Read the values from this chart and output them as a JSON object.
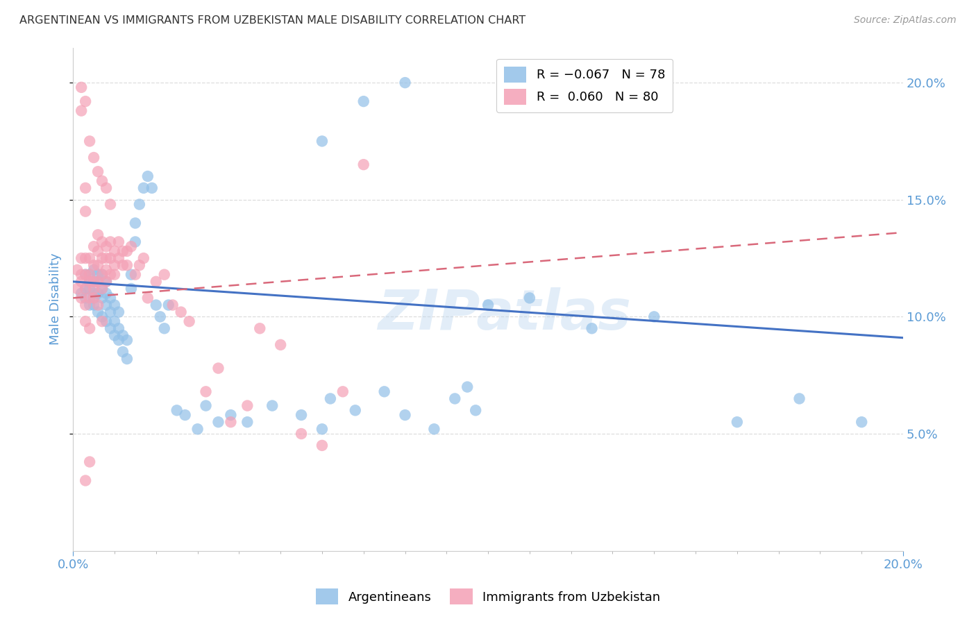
{
  "title": "ARGENTINEAN VS IMMIGRANTS FROM UZBEKISTAN MALE DISABILITY CORRELATION CHART",
  "source": "Source: ZipAtlas.com",
  "ylabel": "Male Disability",
  "xlim": [
    0.0,
    0.2
  ],
  "ylim": [
    0.0,
    0.215
  ],
  "ytick_values": [
    0.05,
    0.1,
    0.15,
    0.2
  ],
  "xtick_major": [
    0.0,
    0.2
  ],
  "blue_color": "#92C0E8",
  "pink_color": "#F4A0B5",
  "blue_line_color": "#4472C4",
  "pink_line_color": "#D9687A",
  "legend_blue_label": "R = −0.067   N = 78",
  "legend_pink_label": "R =  0.060   N = 80",
  "legend_label_argentineans": "Argentineans",
  "legend_label_immigrants": "Immigrants from Uzbekistan",
  "watermark": "ZIPatlas",
  "blue_line_x0": 0.0,
  "blue_line_y0": 0.115,
  "blue_line_x1": 0.2,
  "blue_line_y1": 0.091,
  "pink_line_x0": 0.0,
  "pink_line_y0": 0.108,
  "pink_line_x1": 0.2,
  "pink_line_y1": 0.136,
  "blue_scatter_x": [
    0.002,
    0.003,
    0.003,
    0.003,
    0.004,
    0.004,
    0.004,
    0.004,
    0.005,
    0.005,
    0.005,
    0.005,
    0.005,
    0.006,
    0.006,
    0.006,
    0.006,
    0.007,
    0.007,
    0.007,
    0.007,
    0.008,
    0.008,
    0.008,
    0.008,
    0.009,
    0.009,
    0.009,
    0.01,
    0.01,
    0.01,
    0.011,
    0.011,
    0.011,
    0.012,
    0.012,
    0.013,
    0.013,
    0.014,
    0.014,
    0.015,
    0.015,
    0.016,
    0.017,
    0.018,
    0.019,
    0.02,
    0.021,
    0.022,
    0.023,
    0.025,
    0.027,
    0.03,
    0.032,
    0.035,
    0.038,
    0.042,
    0.048,
    0.055,
    0.06,
    0.062,
    0.068,
    0.075,
    0.08,
    0.087,
    0.092,
    0.097,
    0.1,
    0.11,
    0.125,
    0.14,
    0.16,
    0.175,
    0.19,
    0.06,
    0.07,
    0.08,
    0.095
  ],
  "blue_scatter_y": [
    0.11,
    0.112,
    0.108,
    0.118,
    0.105,
    0.112,
    0.118,
    0.115,
    0.108,
    0.115,
    0.12,
    0.105,
    0.11,
    0.102,
    0.11,
    0.115,
    0.118,
    0.1,
    0.108,
    0.112,
    0.118,
    0.098,
    0.105,
    0.11,
    0.115,
    0.095,
    0.102,
    0.108,
    0.092,
    0.098,
    0.105,
    0.09,
    0.095,
    0.102,
    0.085,
    0.092,
    0.082,
    0.09,
    0.112,
    0.118,
    0.132,
    0.14,
    0.148,
    0.155,
    0.16,
    0.155,
    0.105,
    0.1,
    0.095,
    0.105,
    0.06,
    0.058,
    0.052,
    0.062,
    0.055,
    0.058,
    0.055,
    0.062,
    0.058,
    0.052,
    0.065,
    0.06,
    0.068,
    0.058,
    0.052,
    0.065,
    0.06,
    0.105,
    0.108,
    0.095,
    0.1,
    0.055,
    0.065,
    0.055,
    0.175,
    0.192,
    0.2,
    0.07
  ],
  "pink_scatter_x": [
    0.001,
    0.001,
    0.002,
    0.002,
    0.002,
    0.002,
    0.003,
    0.003,
    0.003,
    0.003,
    0.003,
    0.004,
    0.004,
    0.004,
    0.004,
    0.005,
    0.005,
    0.005,
    0.005,
    0.006,
    0.006,
    0.006,
    0.006,
    0.007,
    0.007,
    0.007,
    0.007,
    0.008,
    0.008,
    0.008,
    0.008,
    0.009,
    0.009,
    0.009,
    0.01,
    0.01,
    0.01,
    0.011,
    0.011,
    0.012,
    0.012,
    0.013,
    0.013,
    0.014,
    0.015,
    0.016,
    0.017,
    0.018,
    0.02,
    0.022,
    0.024,
    0.026,
    0.028,
    0.032,
    0.035,
    0.038,
    0.042,
    0.045,
    0.05,
    0.055,
    0.06,
    0.065,
    0.07,
    0.003,
    0.004,
    0.005,
    0.006,
    0.007,
    0.008,
    0.009,
    0.002,
    0.002,
    0.003,
    0.003,
    0.004,
    0.005,
    0.006,
    0.007,
    0.003,
    0.004
  ],
  "pink_scatter_y": [
    0.12,
    0.112,
    0.125,
    0.115,
    0.108,
    0.118,
    0.118,
    0.112,
    0.105,
    0.125,
    0.098,
    0.125,
    0.118,
    0.108,
    0.095,
    0.13,
    0.122,
    0.115,
    0.112,
    0.135,
    0.128,
    0.122,
    0.115,
    0.132,
    0.125,
    0.118,
    0.112,
    0.13,
    0.125,
    0.12,
    0.115,
    0.132,
    0.125,
    0.118,
    0.128,
    0.122,
    0.118,
    0.132,
    0.125,
    0.128,
    0.122,
    0.128,
    0.122,
    0.13,
    0.118,
    0.122,
    0.125,
    0.108,
    0.115,
    0.118,
    0.105,
    0.102,
    0.098,
    0.068,
    0.078,
    0.055,
    0.062,
    0.095,
    0.088,
    0.05,
    0.045,
    0.068,
    0.165,
    0.145,
    0.175,
    0.168,
    0.162,
    0.158,
    0.155,
    0.148,
    0.198,
    0.188,
    0.192,
    0.155,
    0.115,
    0.108,
    0.105,
    0.098,
    0.03,
    0.038
  ],
  "background_color": "#FFFFFF",
  "grid_color": "#DDDDDD",
  "title_color": "#333333",
  "axis_label_color": "#5B9BD5",
  "tick_label_color": "#5B9BD5"
}
